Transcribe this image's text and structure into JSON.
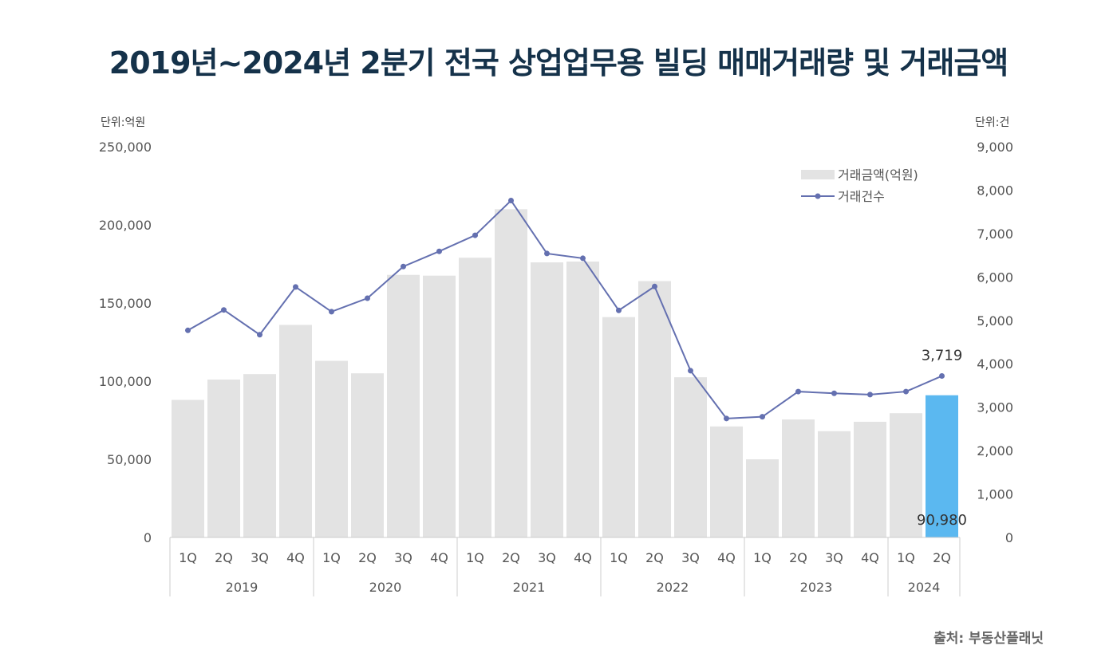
{
  "title": "2019년~2024년 2분기 전국 상업업무용 빌딩 매매거래량 및 거래금액",
  "source": "출처: 부동산플래닛",
  "chart_data": {
    "type": "bar+line",
    "left_unit": "단위:억원",
    "right_unit": "단위:건",
    "categories": [
      "1Q",
      "2Q",
      "3Q",
      "4Q",
      "1Q",
      "2Q",
      "3Q",
      "4Q",
      "1Q",
      "2Q",
      "3Q",
      "4Q",
      "1Q",
      "2Q",
      "3Q",
      "4Q",
      "1Q",
      "2Q",
      "3Q",
      "4Q",
      "1Q",
      "2Q"
    ],
    "years": [
      {
        "label": "2019",
        "count": 4
      },
      {
        "label": "2020",
        "count": 4
      },
      {
        "label": "2021",
        "count": 4
      },
      {
        "label": "2022",
        "count": 4
      },
      {
        "label": "2023",
        "count": 4
      },
      {
        "label": "2024",
        "count": 2
      }
    ],
    "y_left": {
      "range": [
        0,
        250000
      ],
      "ticks": [
        "0",
        "50,000",
        "100,000",
        "150,000",
        "200,000",
        "250,000"
      ]
    },
    "y_right": {
      "range": [
        0,
        9000
      ],
      "ticks": [
        "0",
        "1,000",
        "2,000",
        "3,000",
        "4,000",
        "5,000",
        "6,000",
        "7,000",
        "8,000",
        "9,000"
      ]
    },
    "series": [
      {
        "name": "거래금액(억원)",
        "type": "bar",
        "axis": "left",
        "color": "#e3e3e3",
        "highlight_color": "#5bb8f0",
        "values": [
          88000,
          101000,
          104500,
          136000,
          113000,
          105000,
          168000,
          167500,
          179000,
          210000,
          176000,
          176500,
          141000,
          164000,
          102500,
          71000,
          50000,
          75500,
          68000,
          74000,
          79500,
          90980
        ]
      },
      {
        "name": "거래건수",
        "type": "line",
        "axis": "right",
        "color": "#6470b0",
        "values": [
          4770,
          5240,
          4670,
          5770,
          5200,
          5510,
          6240,
          6590,
          6960,
          7760,
          6540,
          6430,
          5230,
          5780,
          3840,
          2740,
          2780,
          3360,
          3320,
          3290,
          3360,
          3719
        ]
      }
    ],
    "data_labels": {
      "bar_last": "90,980",
      "line_last": "3,719"
    },
    "legend_position": "top-right",
    "grid": false
  }
}
